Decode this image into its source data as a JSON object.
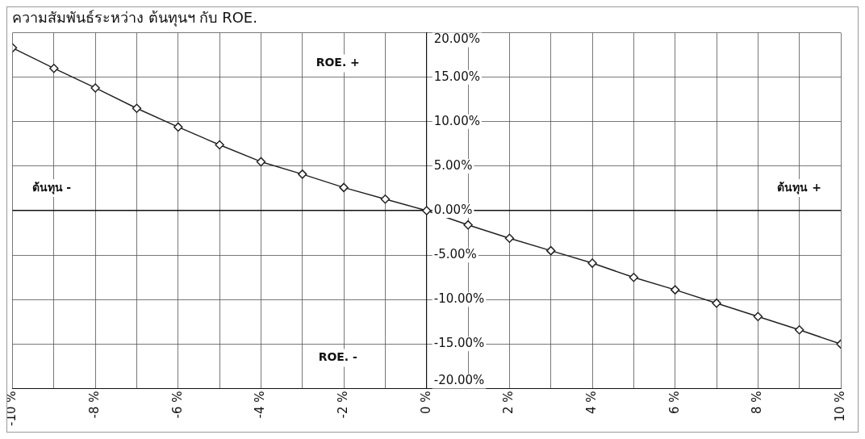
{
  "chart_data": {
    "type": "line",
    "title": "ความสัมพันธ์ระหว่าง ต้นทุนฯ กับ ROE.",
    "x": [
      -10,
      -9,
      -8,
      -7,
      -6,
      -5,
      -4,
      -3,
      -2,
      -1,
      0,
      1,
      2,
      3,
      4,
      5,
      6,
      7,
      8,
      9,
      10
    ],
    "series": [
      {
        "color": "#222222",
        "values": [
          18.3,
          16.0,
          13.8,
          11.5,
          9.4,
          7.4,
          5.5,
          4.1,
          2.6,
          1.3,
          0.0,
          -1.6,
          -3.1,
          -4.5,
          -5.9,
          -7.5,
          -8.9,
          -10.4,
          -11.9,
          -13.4,
          -15.0
        ]
      }
    ],
    "xlim": [
      -10,
      10
    ],
    "xticks": [
      {
        "value": -10,
        "label": "-10 %"
      },
      {
        "value": -9,
        "label": null
      },
      {
        "value": -8,
        "label": "-8 %"
      },
      {
        "value": -7,
        "label": null
      },
      {
        "value": -6,
        "label": "-6 %"
      },
      {
        "value": -5,
        "label": null
      },
      {
        "value": -4,
        "label": "-4 %"
      },
      {
        "value": -3,
        "label": null
      },
      {
        "value": -2,
        "label": "-2 %"
      },
      {
        "value": -1,
        "label": null
      },
      {
        "value": 0,
        "label": "0 %"
      },
      {
        "value": 1,
        "label": null
      },
      {
        "value": 2,
        "label": "2 %"
      },
      {
        "value": 3,
        "label": null
      },
      {
        "value": 4,
        "label": "4 %"
      },
      {
        "value": 5,
        "label": null
      },
      {
        "value": 6,
        "label": "6 %"
      },
      {
        "value": 7,
        "label": null
      },
      {
        "value": 8,
        "label": "8 %"
      },
      {
        "value": 9,
        "label": null
      },
      {
        "value": 10,
        "label": "10 %"
      }
    ],
    "ylim": [
      -20,
      20
    ],
    "yticks": [
      {
        "value": -20,
        "label": "-20.00%"
      },
      {
        "value": -15,
        "label": "-15.00%"
      },
      {
        "value": -10,
        "label": "-10.00%"
      },
      {
        "value": -5,
        "label": "-5.00%"
      },
      {
        "value": 0,
        "label": "0.00%"
      },
      {
        "value": 5,
        "label": "5.00%"
      },
      {
        "value": 10,
        "label": "10.00%"
      },
      {
        "value": 15,
        "label": "15.00%"
      },
      {
        "value": 20,
        "label": "20.00%"
      }
    ],
    "annotations": [
      "ROE. +",
      "ROE. -",
      "ต้นทุน -",
      "ต้นทุน +"
    ],
    "grid": true,
    "marker": "diamond",
    "line_style": "solid",
    "legend": false
  }
}
